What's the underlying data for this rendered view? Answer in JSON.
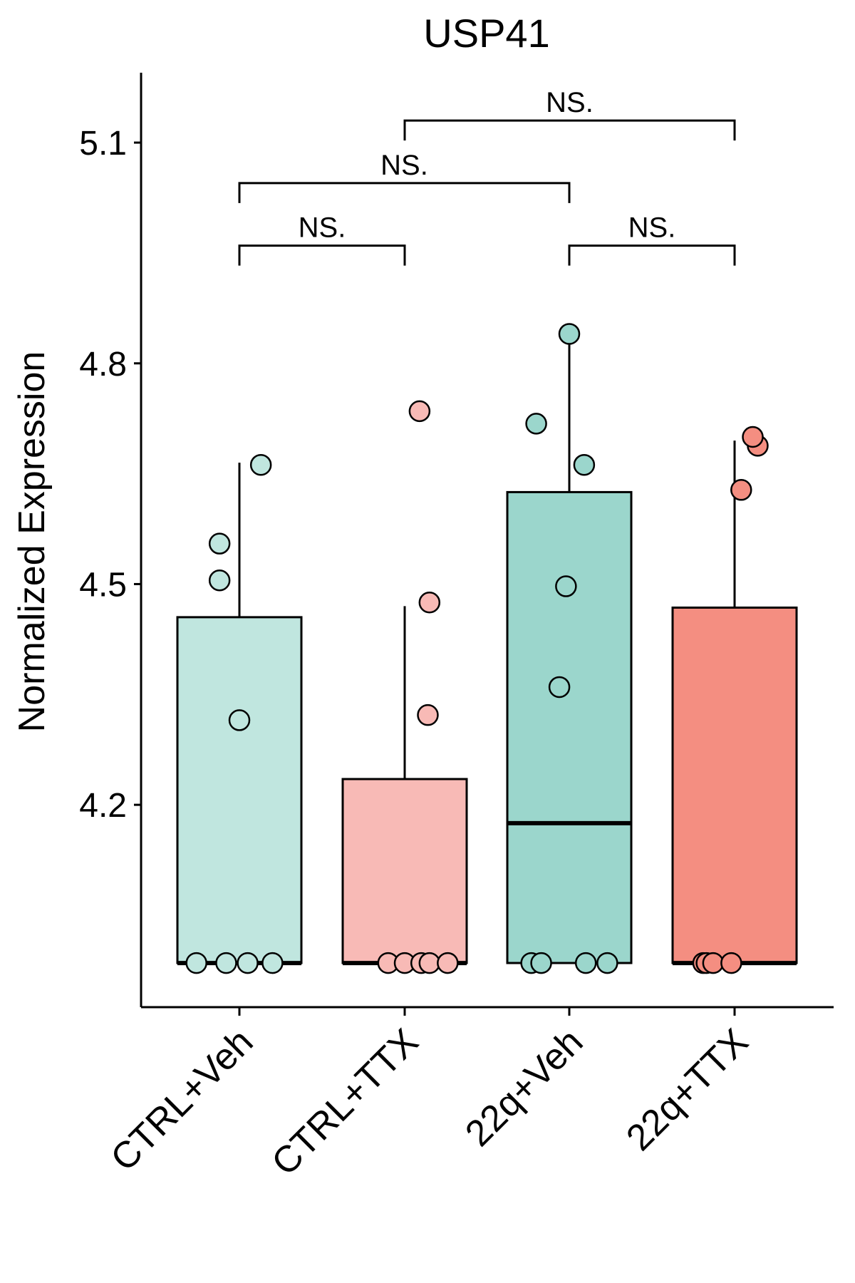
{
  "chart_data": {
    "type": "box",
    "title": "USP41",
    "xlabel": "",
    "ylabel": "Normalized Expression",
    "ylim": [
      3.925,
      5.195
    ],
    "yticks": [
      4.2,
      4.5,
      4.8,
      5.1
    ],
    "ytick_labels": [
      "4.2",
      "4.5",
      "4.8",
      "5.1"
    ],
    "grid": false,
    "legend": "none",
    "categories": [
      "CTRL+Veh",
      "CTRL+TTX",
      "22q+Veh",
      "22q+TTX"
    ],
    "colors": [
      "#c0e6df",
      "#f8bab6",
      "#9bd6cc",
      "#f48e81"
    ],
    "boxes": [
      {
        "name": "CTRL+Veh",
        "q1": 3.985,
        "median": 3.985,
        "q3": 4.455,
        "whisker_low": 3.985,
        "whisker_high": 4.665
      },
      {
        "name": "CTRL+TTX",
        "q1": 3.985,
        "median": 3.985,
        "q3": 4.235,
        "whisker_low": 3.985,
        "whisker_high": 4.47
      },
      {
        "name": "22q+Veh",
        "q1": 3.985,
        "median": 4.175,
        "q3": 4.625,
        "whisker_low": 3.985,
        "whisker_high": 4.84
      },
      {
        "name": "22q+TTX",
        "q1": 3.985,
        "median": 3.985,
        "q3": 4.468,
        "whisker_low": 3.985,
        "whisker_high": 4.695
      }
    ],
    "points": [
      {
        "group": 0,
        "jitter": -0.26,
        "y": 3.985
      },
      {
        "group": 0,
        "jitter": -0.08,
        "y": 3.985
      },
      {
        "group": 0,
        "jitter": 0.05,
        "y": 3.985
      },
      {
        "group": 0,
        "jitter": 0.2,
        "y": 3.985
      },
      {
        "group": 0,
        "jitter": 0.0,
        "y": 4.315
      },
      {
        "group": 0,
        "jitter": -0.12,
        "y": 4.505
      },
      {
        "group": 0,
        "jitter": -0.12,
        "y": 4.555
      },
      {
        "group": 0,
        "jitter": 0.13,
        "y": 4.662
      },
      {
        "group": 1,
        "jitter": -0.1,
        "y": 3.985
      },
      {
        "group": 1,
        "jitter": 0.0,
        "y": 3.985
      },
      {
        "group": 1,
        "jitter": 0.1,
        "y": 3.985
      },
      {
        "group": 1,
        "jitter": 0.15,
        "y": 3.985
      },
      {
        "group": 1,
        "jitter": 0.26,
        "y": 3.985
      },
      {
        "group": 1,
        "jitter": 0.14,
        "y": 4.322
      },
      {
        "group": 1,
        "jitter": 0.15,
        "y": 4.475
      },
      {
        "group": 1,
        "jitter": 0.09,
        "y": 4.735
      },
      {
        "group": 2,
        "jitter": -0.23,
        "y": 3.985
      },
      {
        "group": 2,
        "jitter": -0.17,
        "y": 3.985
      },
      {
        "group": 2,
        "jitter": 0.1,
        "y": 3.985
      },
      {
        "group": 2,
        "jitter": 0.23,
        "y": 3.985
      },
      {
        "group": 2,
        "jitter": -0.06,
        "y": 4.36
      },
      {
        "group": 2,
        "jitter": -0.02,
        "y": 4.497
      },
      {
        "group": 2,
        "jitter": 0.09,
        "y": 4.662
      },
      {
        "group": 2,
        "jitter": -0.2,
        "y": 4.718
      },
      {
        "group": 2,
        "jitter": 0.0,
        "y": 4.84
      },
      {
        "group": 3,
        "jitter": -0.19,
        "y": 3.985
      },
      {
        "group": 3,
        "jitter": -0.17,
        "y": 3.985
      },
      {
        "group": 3,
        "jitter": -0.13,
        "y": 3.985
      },
      {
        "group": 3,
        "jitter": -0.02,
        "y": 3.985
      },
      {
        "group": 3,
        "jitter": 0.04,
        "y": 4.628
      },
      {
        "group": 3,
        "jitter": 0.14,
        "y": 4.688
      },
      {
        "group": 3,
        "jitter": 0.11,
        "y": 4.7
      }
    ],
    "annotations": [
      {
        "from": 0,
        "to": 1,
        "y": 4.96,
        "label": "NS."
      },
      {
        "from": 2,
        "to": 3,
        "y": 4.96,
        "label": "NS."
      },
      {
        "from": 0,
        "to": 2,
        "y": 5.045,
        "label": "NS."
      },
      {
        "from": 1,
        "to": 3,
        "y": 5.13,
        "label": "NS."
      }
    ]
  }
}
